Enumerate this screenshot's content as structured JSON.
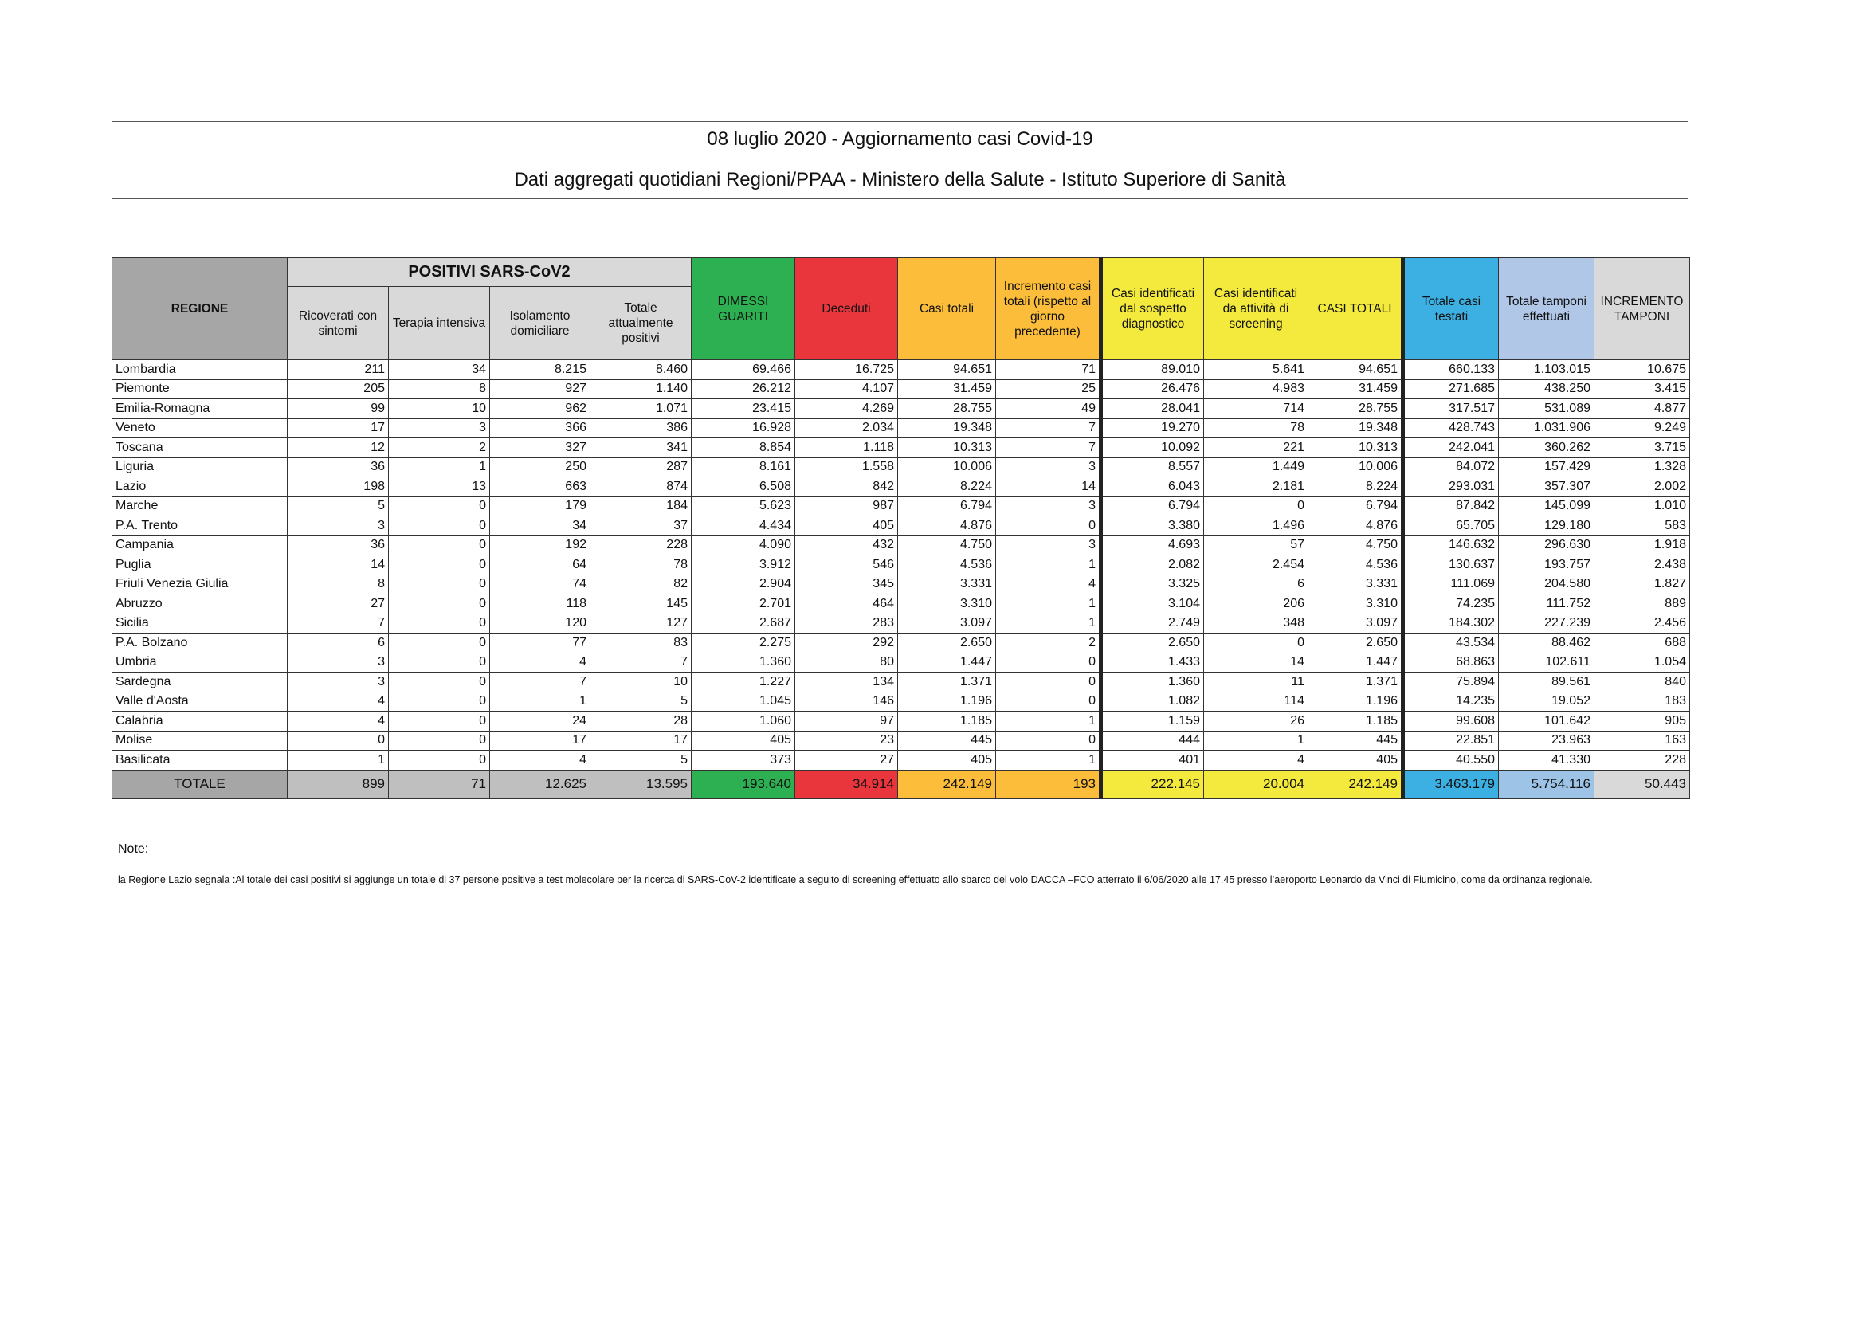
{
  "header": {
    "title": "08 luglio 2020 - Aggiornamento casi Covid-19",
    "subtitle": "Dati aggregati quotidiani Regioni/PPAA - Ministero della Salute - Istituto Superiore di Sanità"
  },
  "table": {
    "group_header": "POSITIVI SARS-CoV2",
    "columns": [
      {
        "label": "REGIONE",
        "color": "#a6a6a6"
      },
      {
        "label": "Ricoverati con sintomi",
        "color": "#d9d9d9"
      },
      {
        "label": "Terapia intensiva",
        "color": "#d9d9d9"
      },
      {
        "label": "Isolamento domiciliare",
        "color": "#d9d9d9"
      },
      {
        "label": "Totale attualmente positivi",
        "color": "#d9d9d9"
      },
      {
        "label": "DIMESSI GUARITI",
        "color": "#2db051"
      },
      {
        "label": "Deceduti",
        "color": "#e9363d"
      },
      {
        "label": "Casi totali",
        "color": "#fcbe3a"
      },
      {
        "label": "Incremento casi totali (rispetto al giorno precedente)",
        "color": "#fcbe3a"
      },
      {
        "label": "Casi identificati dal sospetto diagnostico",
        "color": "#f3ea3d"
      },
      {
        "label": "Casi identificati da attività di screening",
        "color": "#f3ea3d"
      },
      {
        "label": "CASI TOTALI",
        "color": "#f3ea3d"
      },
      {
        "label": "Totale casi testati",
        "color": "#3db0e3"
      },
      {
        "label": "Totale tamponi effettuati",
        "color": "#b1c7e8"
      },
      {
        "label": "INCREMENTO TAMPONI",
        "color": "#d9d9d9"
      }
    ],
    "rows": [
      [
        "Lombardia",
        "211",
        "34",
        "8.215",
        "8.460",
        "69.466",
        "16.725",
        "94.651",
        "71",
        "89.010",
        "5.641",
        "94.651",
        "660.133",
        "1.103.015",
        "10.675"
      ],
      [
        "Piemonte",
        "205",
        "8",
        "927",
        "1.140",
        "26.212",
        "4.107",
        "31.459",
        "25",
        "26.476",
        "4.983",
        "31.459",
        "271.685",
        "438.250",
        "3.415"
      ],
      [
        "Emilia-Romagna",
        "99",
        "10",
        "962",
        "1.071",
        "23.415",
        "4.269",
        "28.755",
        "49",
        "28.041",
        "714",
        "28.755",
        "317.517",
        "531.089",
        "4.877"
      ],
      [
        "Veneto",
        "17",
        "3",
        "366",
        "386",
        "16.928",
        "2.034",
        "19.348",
        "7",
        "19.270",
        "78",
        "19.348",
        "428.743",
        "1.031.906",
        "9.249"
      ],
      [
        "Toscana",
        "12",
        "2",
        "327",
        "341",
        "8.854",
        "1.118",
        "10.313",
        "7",
        "10.092",
        "221",
        "10.313",
        "242.041",
        "360.262",
        "3.715"
      ],
      [
        "Liguria",
        "36",
        "1",
        "250",
        "287",
        "8.161",
        "1.558",
        "10.006",
        "3",
        "8.557",
        "1.449",
        "10.006",
        "84.072",
        "157.429",
        "1.328"
      ],
      [
        "Lazio",
        "198",
        "13",
        "663",
        "874",
        "6.508",
        "842",
        "8.224",
        "14",
        "6.043",
        "2.181",
        "8.224",
        "293.031",
        "357.307",
        "2.002"
      ],
      [
        "Marche",
        "5",
        "0",
        "179",
        "184",
        "5.623",
        "987",
        "6.794",
        "3",
        "6.794",
        "0",
        "6.794",
        "87.842",
        "145.099",
        "1.010"
      ],
      [
        "P.A. Trento",
        "3",
        "0",
        "34",
        "37",
        "4.434",
        "405",
        "4.876",
        "0",
        "3.380",
        "1.496",
        "4.876",
        "65.705",
        "129.180",
        "583"
      ],
      [
        "Campania",
        "36",
        "0",
        "192",
        "228",
        "4.090",
        "432",
        "4.750",
        "3",
        "4.693",
        "57",
        "4.750",
        "146.632",
        "296.630",
        "1.918"
      ],
      [
        "Puglia",
        "14",
        "0",
        "64",
        "78",
        "3.912",
        "546",
        "4.536",
        "1",
        "2.082",
        "2.454",
        "4.536",
        "130.637",
        "193.757",
        "2.438"
      ],
      [
        "Friuli Venezia Giulia",
        "8",
        "0",
        "74",
        "82",
        "2.904",
        "345",
        "3.331",
        "4",
        "3.325",
        "6",
        "3.331",
        "111.069",
        "204.580",
        "1.827"
      ],
      [
        "Abruzzo",
        "27",
        "0",
        "118",
        "145",
        "2.701",
        "464",
        "3.310",
        "1",
        "3.104",
        "206",
        "3.310",
        "74.235",
        "111.752",
        "889"
      ],
      [
        "Sicilia",
        "7",
        "0",
        "120",
        "127",
        "2.687",
        "283",
        "3.097",
        "1",
        "2.749",
        "348",
        "3.097",
        "184.302",
        "227.239",
        "2.456"
      ],
      [
        "P.A. Bolzano",
        "6",
        "0",
        "77",
        "83",
        "2.275",
        "292",
        "2.650",
        "2",
        "2.650",
        "0",
        "2.650",
        "43.534",
        "88.462",
        "688"
      ],
      [
        "Umbria",
        "3",
        "0",
        "4",
        "7",
        "1.360",
        "80",
        "1.447",
        "0",
        "1.433",
        "14",
        "1.447",
        "68.863",
        "102.611",
        "1.054"
      ],
      [
        "Sardegna",
        "3",
        "0",
        "7",
        "10",
        "1.227",
        "134",
        "1.371",
        "0",
        "1.360",
        "11",
        "1.371",
        "75.894",
        "89.561",
        "840"
      ],
      [
        "Valle d'Aosta",
        "4",
        "0",
        "1",
        "5",
        "1.045",
        "146",
        "1.196",
        "0",
        "1.082",
        "114",
        "1.196",
        "14.235",
        "19.052",
        "183"
      ],
      [
        "Calabria",
        "4",
        "0",
        "24",
        "28",
        "1.060",
        "97",
        "1.185",
        "1",
        "1.159",
        "26",
        "1.185",
        "99.608",
        "101.642",
        "905"
      ],
      [
        "Molise",
        "0",
        "0",
        "17",
        "17",
        "405",
        "23",
        "445",
        "0",
        "444",
        "1",
        "445",
        "22.851",
        "23.963",
        "163"
      ],
      [
        "Basilicata",
        "1",
        "0",
        "4",
        "5",
        "373",
        "27",
        "405",
        "1",
        "401",
        "4",
        "405",
        "40.550",
        "41.330",
        "228"
      ]
    ],
    "total": [
      "TOTALE",
      "899",
      "71",
      "12.625",
      "13.595",
      "193.640",
      "34.914",
      "242.149",
      "193",
      "222.145",
      "20.004",
      "242.149",
      "3.463.179",
      "5.754.116",
      "50.443"
    ]
  },
  "notes": {
    "label": "Note:",
    "text": "la Regione Lazio segnala :Al totale dei casi positivi si aggiunge un totale di 37 persone positive a test molecolare per la ricerca di SARS-CoV-2 identificate a seguito di screening effettuato allo sbarco del volo DACCA –FCO atterrato il 6/06/2020  alle 17.45 presso l’aeroporto Leonardo da Vinci di Fiumicino, come da ordinanza regionale."
  }
}
